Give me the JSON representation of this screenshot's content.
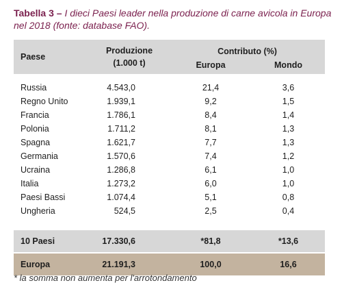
{
  "caption": {
    "label": "Tabella 3 –",
    "text": " I dieci Paesi leader nella produzione di carne avicola in Europa nel 2018 (fonte: database FAO)."
  },
  "headers": {
    "country": "Paese",
    "production_line1": "Produzione",
    "production_line2": "(1.000 t)",
    "contribution": "Contributo (%)",
    "europe": "Europa",
    "world": "Mondo"
  },
  "rows": [
    {
      "country": "Russia",
      "production": "4.543,0",
      "europe": "21,4",
      "world": "3,6"
    },
    {
      "country": "Regno Unito",
      "production": "1.939,1",
      "europe": "9,2",
      "world": "1,5"
    },
    {
      "country": "Francia",
      "production": "1.786,1",
      "europe": "8,4",
      "world": "1,4"
    },
    {
      "country": "Polonia",
      "production": "1.711,2",
      "europe": "8,1",
      "world": "1,3"
    },
    {
      "country": "Spagna",
      "production": "1.621,7",
      "europe": "7,7",
      "world": "1,3"
    },
    {
      "country": "Germania",
      "production": "1.570,6",
      "europe": "7,4",
      "world": "1,2"
    },
    {
      "country": "Ucraina",
      "production": "1.286,8",
      "europe": "6,1",
      "world": "1,0"
    },
    {
      "country": "Italia",
      "production": "1.273,2",
      "europe": "6,0",
      "world": "1,0"
    },
    {
      "country": "Paesi Bassi",
      "production": "1.074,4",
      "europe": "5,1",
      "world": "0,8"
    },
    {
      "country": "Ungheria",
      "production": "524,5",
      "europe": "2,5",
      "world": "0,4"
    }
  ],
  "total": {
    "country": "10 Paesi",
    "production": "17.330,6",
    "europe": "*81,8",
    "world": "*13,6"
  },
  "europe_total": {
    "country": "Europa",
    "production": "21.191,3",
    "europe": "100,0",
    "world": "16,6"
  },
  "footnote": "* la somma non aumenta per l'arrotondamento"
}
